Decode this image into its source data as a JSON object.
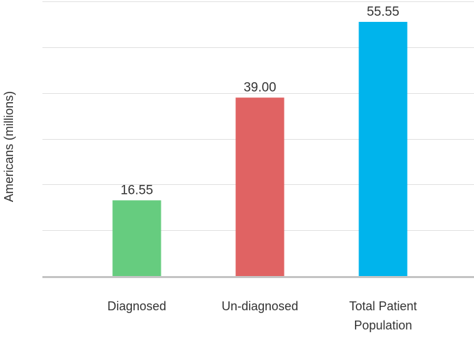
{
  "chart_data": {
    "type": "bar",
    "categories": [
      "Diagnosed",
      "Un-diagnosed",
      "Total Patient Population"
    ],
    "category_lines": [
      [
        "Diagnosed"
      ],
      [
        "Un-diagnosed"
      ],
      [
        "Total Patient",
        "Population"
      ]
    ],
    "values": [
      16.55,
      39.0,
      55.55
    ],
    "value_labels": [
      "16.55",
      "39.00",
      "55.55"
    ],
    "colors": [
      "#66cc7f",
      "#e06363",
      "#00b4ec"
    ],
    "title": "",
    "xlabel": "",
    "ylabel": "Americans (millions)",
    "ylim": [
      0,
      60
    ],
    "grid": true,
    "legend": "none"
  }
}
